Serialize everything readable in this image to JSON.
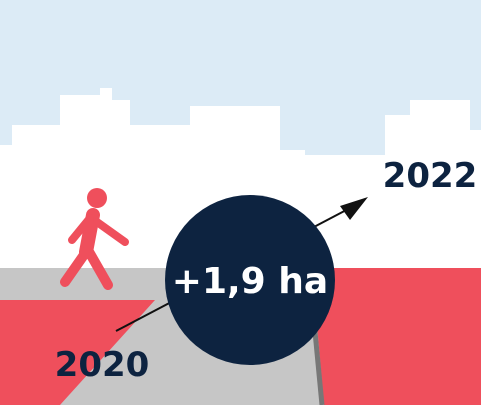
{
  "change": "+1,9 ha",
  "start_year": "2020",
  "end_year": "2022"
}
